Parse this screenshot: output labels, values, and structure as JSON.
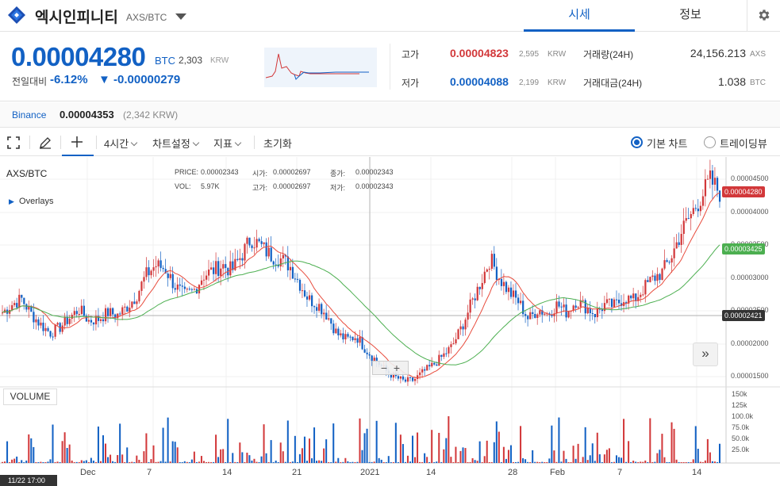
{
  "header": {
    "coin_name": "엑시인피니티",
    "pair": "AXS/BTC",
    "tabs": [
      "시세",
      "정보"
    ],
    "active_tab": "시세"
  },
  "price": {
    "current": "0.00004280",
    "unit": "BTC",
    "krw": "2,303",
    "krw_unit": "KRW",
    "change_label": "전일대비",
    "change_pct": "-6.12%",
    "change_amt": "▼ -0.00000279"
  },
  "stats": {
    "high_label": "고가",
    "high": "0.00004823",
    "high_krw": "2,595",
    "low_label": "저가",
    "low": "0.00004088",
    "low_krw": "2,199",
    "krw_unit": "KRW",
    "volume_label": "거래량(24H)",
    "volume": "24,156.213",
    "volume_unit": "AXS",
    "amount_label": "거래대금(24H)",
    "amount": "1.038",
    "amount_unit": "BTC"
  },
  "exchange": {
    "name": "Binance",
    "price": "0.00004353",
    "krw": "(2,342 KRW)"
  },
  "toolbar": {
    "interval": "4시간",
    "chart_settings": "차트설정",
    "indicators": "지표",
    "reset": "초기화",
    "basic_chart": "기본 차트",
    "tradingview": "트레이딩뷰"
  },
  "chart_info": {
    "pair": "AXS/BTC",
    "overlays": "Overlays",
    "price_label": "PRICE:",
    "price": "0.00002343",
    "open_label": "시가:",
    "open": "0.00002697",
    "close_label": "종가:",
    "close": "0.00002343",
    "vol_label": "VOL:",
    "vol": "5.97K",
    "high_label": "고가:",
    "high": "0.00002697",
    "low_label": "저가:",
    "low": "0.00002343",
    "volume_panel": "VOLUME",
    "tag_current": "0.00004280",
    "tag_ma": "0.00003425",
    "tag_crosshair": "0.00002421",
    "time_label": "11/22 17:00"
  },
  "colors": {
    "up": "#d2383a",
    "down": "#1261c4",
    "ma_fast": "#e84c3d",
    "ma_slow": "#4caf50"
  },
  "chart_data": {
    "type": "candlestick",
    "y_ticks": [
      "0.00004500",
      "0.00004000",
      "0.00003500",
      "0.00003000",
      "0.00002500",
      "0.00002000",
      "0.00001500"
    ],
    "volume_ticks": [
      "150k",
      "125k",
      "100.0k",
      "75.0k",
      "50.0k",
      "25.0k"
    ],
    "x_ticks": [
      "Dec",
      "7",
      "14",
      "21",
      "2021",
      "14",
      "28",
      "Feb",
      "7",
      "14"
    ],
    "ylim": [
      1.4e-05,
      4.8e-05
    ],
    "close_path": [
      2.5e-05,
      2.62e-05,
      2.7e-05,
      2.48e-05,
      2.32e-05,
      2.2e-05,
      2.28e-05,
      2.42e-05,
      2.55e-05,
      2.38e-05,
      2.4e-05,
      2.5e-05,
      2.46e-05,
      2.58e-05,
      2.75e-05,
      3.05e-05,
      3.2e-05,
      3.15e-05,
      2.9e-05,
      2.75e-05,
      2.82e-05,
      3.05e-05,
      3.12e-05,
      3.2e-05,
      3.12e-05,
      3.35e-05,
      3.6e-05,
      3.48e-05,
      3.35e-05,
      3.3e-05,
      3.2e-05,
      2.95e-05,
      2.7e-05,
      2.62e-05,
      2.45e-05,
      2.18e-05,
      2.1e-05,
      2.15e-05,
      1.95e-05,
      1.8e-05,
      1.65e-05,
      1.55e-05,
      1.48e-05,
      1.5e-05,
      1.62e-05,
      1.72e-05,
      1.85e-05,
      2e-05,
      2.28e-05,
      2.62e-05,
      2.95e-05,
      3.3e-05,
      3e-05,
      2.8e-05,
      2.65e-05,
      2.4e-05,
      2.55e-05,
      2.48e-05,
      2.62e-05,
      2.5e-05,
      2.68e-05,
      2.58e-05,
      2.48e-05,
      2.62e-05,
      2.6e-05,
      2.72e-05,
      2.68e-05,
      2.85e-05,
      3e-05,
      3.1e-05,
      3.35e-05,
      3.7e-05,
      3.95e-05,
      4.2e-05,
      4.45e-05,
      4.28e-05
    ]
  }
}
